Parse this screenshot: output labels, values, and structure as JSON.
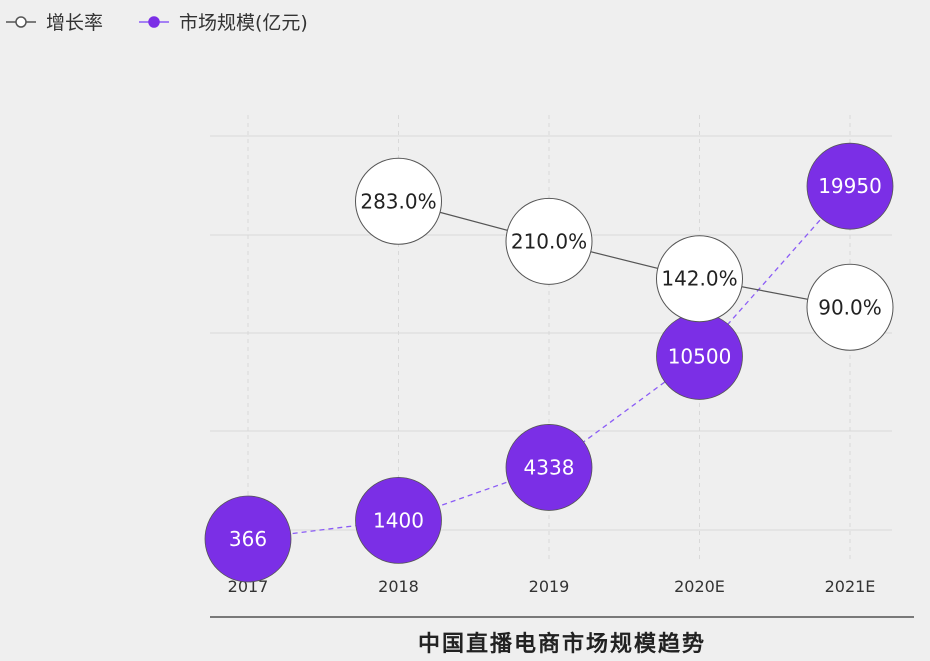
{
  "chart_data": {
    "type": "line",
    "title": "中国直播电商市场规模趋势",
    "categories": [
      "2017",
      "2018",
      "2019",
      "2020E",
      "2021E"
    ],
    "legend_position": "top-left",
    "grid": true,
    "series": [
      {
        "name": "增长率",
        "values": [
          null,
          283.0,
          210.0,
          142.0,
          90.0
        ],
        "labels": [
          null,
          "283.0%",
          "210.0%",
          "142.0%",
          "90.0%"
        ],
        "color": "#ffffff",
        "stroke": "#555555",
        "line_style": "solid",
        "ylim": [
          -370,
          440
        ]
      },
      {
        "name": "市场规模(亿元)",
        "values": [
          366,
          1400,
          4338,
          10500,
          19950
        ],
        "labels": [
          "366",
          "1400",
          "4338",
          "10500",
          "19950"
        ],
        "color": "#7b2fe6",
        "line_style": "dashed",
        "ylim": [
          -800,
          23900
        ]
      }
    ]
  }
}
